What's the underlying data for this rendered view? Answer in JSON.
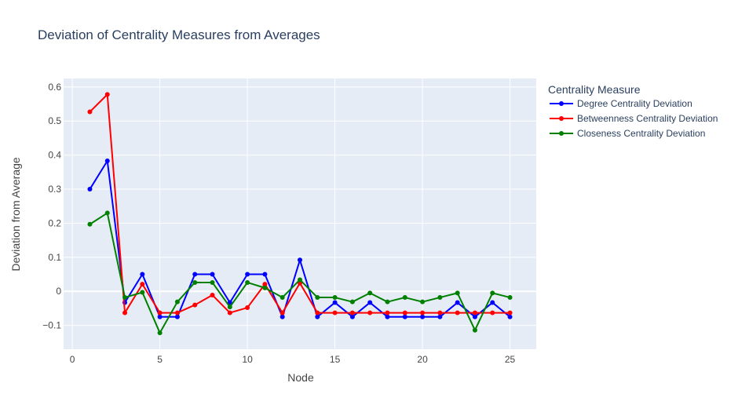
{
  "chart_data": {
    "type": "line",
    "title": "Deviation of Centrality Measures from Averages",
    "xlabel": "Node",
    "ylabel": "Deviation from Average",
    "xlim": [
      -0.5,
      26.5
    ],
    "ylim": [
      -0.17,
      0.625
    ],
    "xticks": [
      0,
      5,
      10,
      15,
      20,
      25
    ],
    "yticks": [
      -0.1,
      0,
      0.1,
      0.2,
      0.3,
      0.4,
      0.5,
      0.6
    ],
    "ytick_labels": [
      "−0.1",
      "0",
      "0.1",
      "0.2",
      "0.3",
      "0.4",
      "0.5",
      "0.6"
    ],
    "grid": true,
    "legend": {
      "title": "Centrality Measure",
      "position": "right"
    },
    "x": [
      1,
      2,
      3,
      4,
      5,
      6,
      7,
      8,
      9,
      10,
      11,
      12,
      13,
      14,
      15,
      16,
      17,
      18,
      19,
      20,
      21,
      22,
      23,
      24,
      25
    ],
    "series": [
      {
        "name": "Degree Centrality Deviation",
        "color": "#0000ff",
        "values": [
          0.3,
          0.383,
          -0.033,
          0.05,
          -0.075,
          -0.075,
          0.05,
          0.05,
          -0.033,
          0.05,
          0.05,
          -0.075,
          0.092,
          -0.075,
          -0.033,
          -0.075,
          -0.033,
          -0.075,
          -0.075,
          -0.075,
          -0.075,
          -0.033,
          -0.075,
          -0.033,
          -0.075
        ]
      },
      {
        "name": "Betweenness Centrality Deviation",
        "color": "#ff0000",
        "values": [
          0.527,
          0.578,
          -0.063,
          0.021,
          -0.063,
          -0.063,
          -0.04,
          -0.011,
          -0.063,
          -0.048,
          0.021,
          -0.063,
          0.024,
          -0.063,
          -0.063,
          -0.063,
          -0.063,
          -0.063,
          -0.063,
          -0.063,
          -0.063,
          -0.063,
          -0.063,
          -0.063,
          -0.063
        ]
      },
      {
        "name": "Closeness Centrality Deviation",
        "color": "#008000",
        "values": [
          0.197,
          0.23,
          -0.018,
          -0.003,
          -0.122,
          -0.031,
          0.026,
          0.026,
          -0.046,
          0.026,
          0.01,
          -0.018,
          0.034,
          -0.018,
          -0.018,
          -0.031,
          -0.005,
          -0.031,
          -0.018,
          -0.031,
          -0.018,
          -0.005,
          -0.114,
          -0.005,
          -0.018
        ]
      }
    ]
  }
}
